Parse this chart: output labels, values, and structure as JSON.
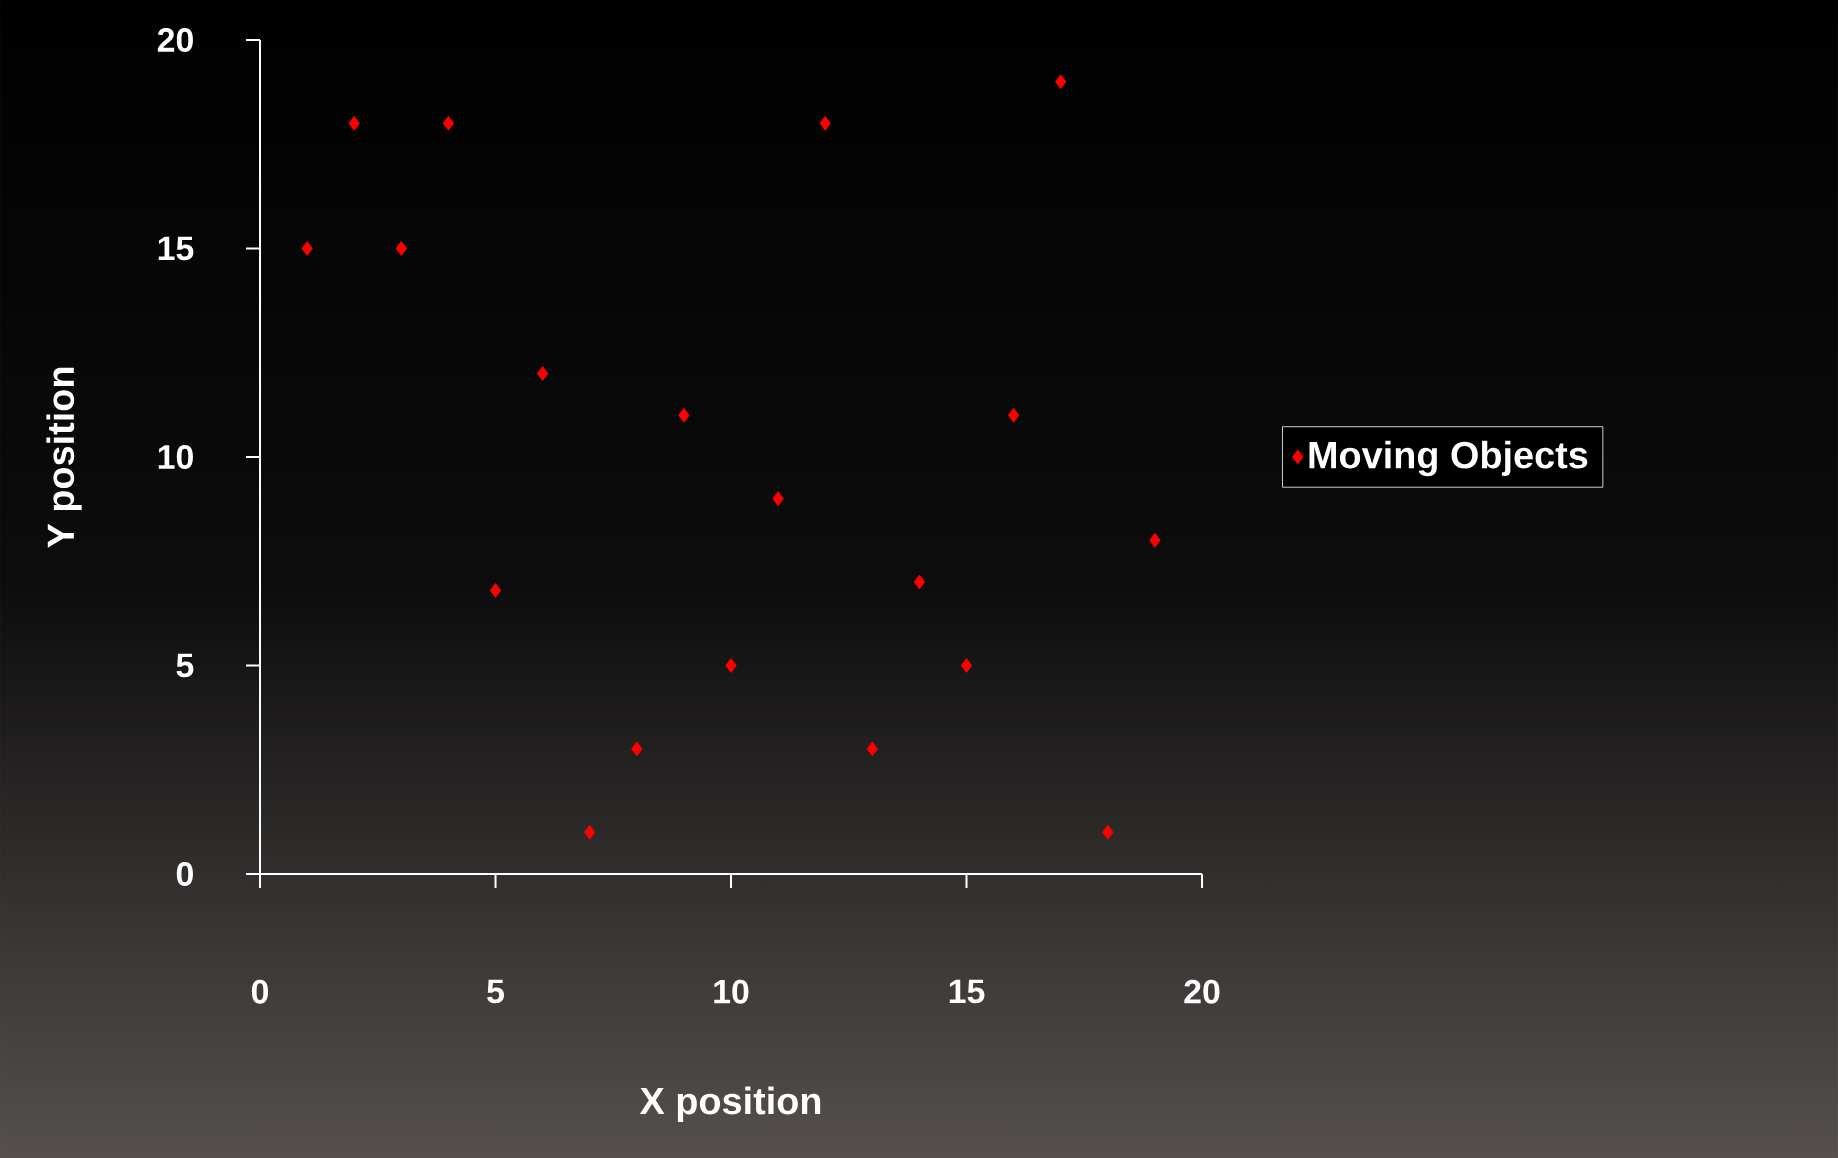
{
  "chart_data": {
    "type": "scatter",
    "xlabel": "X position",
    "ylabel": "Y position",
    "x": [
      1,
      2,
      3,
      4,
      5,
      6,
      7,
      8,
      9,
      10,
      11,
      12,
      13,
      14,
      15,
      16,
      17,
      18,
      19
    ],
    "series": [
      {
        "name": "Moving Objects",
        "color": "#ff0000",
        "values": [
          15,
          18,
          15,
          18,
          6.8,
          12,
          1,
          3,
          11,
          5,
          9,
          18,
          3,
          7,
          5,
          11,
          19,
          1,
          8
        ]
      }
    ],
    "xlim": [
      0,
      20
    ],
    "ylim": [
      0,
      20
    ],
    "xticks": [
      0,
      5,
      10,
      15,
      20
    ],
    "yticks": [
      0,
      5,
      10,
      15,
      20
    ],
    "marker": "diamond",
    "legend": "right",
    "grid": false
  }
}
